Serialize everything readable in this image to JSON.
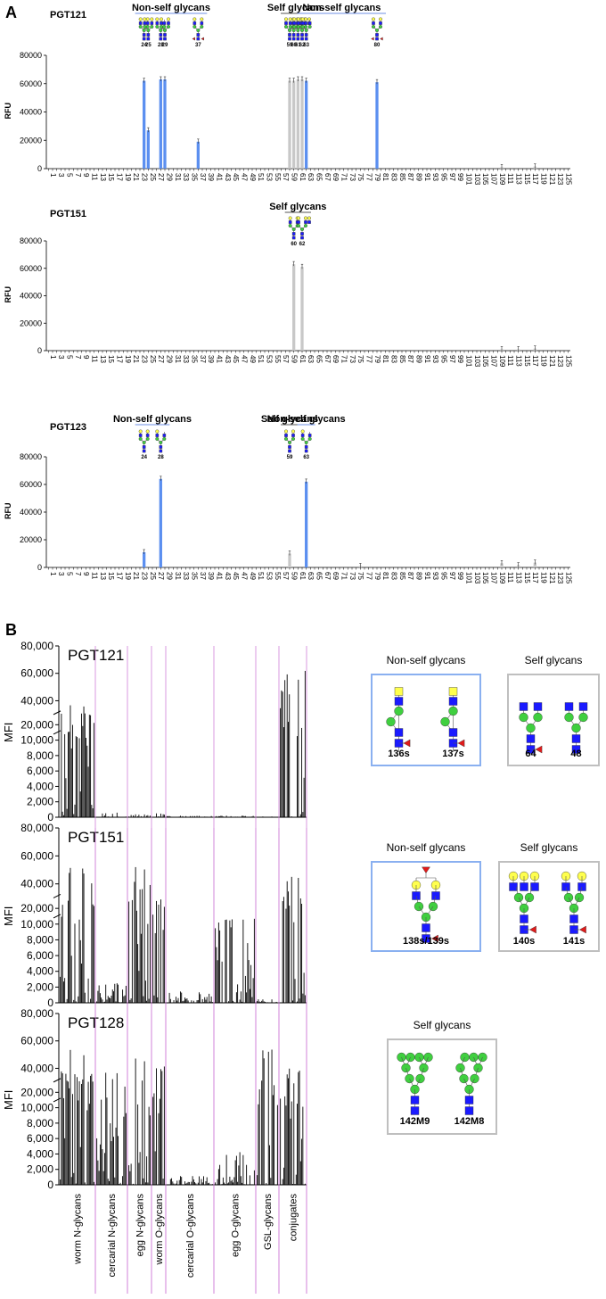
{
  "panel_a_letter": "A",
  "panel_b_letter": "B",
  "chart_data": [
    {
      "type": "bar",
      "title": "PGT121",
      "ylabel": "RFU",
      "ylim": [
        0,
        80000
      ],
      "yticks": [
        0,
        20000,
        40000,
        60000,
        80000
      ],
      "x_range": [
        1,
        126
      ],
      "x_tick_labels_every": 2,
      "bars": [
        {
          "x": 24,
          "value": 62000,
          "group": "non-self"
        },
        {
          "x": 25,
          "value": 27000,
          "group": "non-self"
        },
        {
          "x": 28,
          "value": 63000,
          "group": "non-self"
        },
        {
          "x": 29,
          "value": 63000,
          "group": "non-self"
        },
        {
          "x": 37,
          "value": 19000,
          "group": "non-self"
        },
        {
          "x": 59,
          "value": 62000,
          "group": "self"
        },
        {
          "x": 60,
          "value": 62000,
          "group": "self"
        },
        {
          "x": 61,
          "value": 63000,
          "group": "self"
        },
        {
          "x": 62,
          "value": 63000,
          "group": "self"
        },
        {
          "x": 63,
          "value": 62000,
          "group": "non-self"
        },
        {
          "x": 80,
          "value": 61000,
          "group": "non-self"
        },
        {
          "x": 110,
          "value": 1000,
          "group": "self"
        },
        {
          "x": 118,
          "value": 1500,
          "group": "self"
        }
      ],
      "headers": [
        {
          "label": "Non-self glycans",
          "from": 24,
          "to": 37,
          "color": "#6d8fe6"
        },
        {
          "label": "Self glycans",
          "from": 59,
          "to": 62,
          "color": "#555555"
        },
        {
          "label": "Non-self glycans",
          "from": 63,
          "to": 80,
          "color": "#6d8fe6"
        }
      ],
      "glycan_ids": [
        "24",
        "25",
        "28",
        "29",
        "37",
        "59",
        "60",
        "61",
        "62",
        "63",
        "80"
      ]
    },
    {
      "type": "bar",
      "title": "PGT151",
      "ylabel": "RFU",
      "ylim": [
        0,
        80000
      ],
      "yticks": [
        0,
        20000,
        40000,
        60000,
        80000
      ],
      "x_range": [
        1,
        126
      ],
      "x_tick_labels_every": 2,
      "bars": [
        {
          "x": 60,
          "value": 63000,
          "group": "self"
        },
        {
          "x": 62,
          "value": 61000,
          "group": "self"
        },
        {
          "x": 110,
          "value": 1000,
          "group": "self"
        },
        {
          "x": 114,
          "value": 1000,
          "group": "self"
        },
        {
          "x": 118,
          "value": 1500,
          "group": "self"
        }
      ],
      "headers": [
        {
          "label": "Self glycans",
          "from": 60,
          "to": 62,
          "color": "#555555"
        }
      ],
      "glycan_ids": [
        "60",
        "62"
      ]
    },
    {
      "type": "bar",
      "title": "PGT123",
      "ylabel": "RFU",
      "ylim": [
        0,
        80000
      ],
      "yticks": [
        0,
        20000,
        40000,
        60000,
        80000
      ],
      "x_range": [
        1,
        126
      ],
      "x_tick_labels_every": 2,
      "bars": [
        {
          "x": 24,
          "value": 11000,
          "group": "non-self"
        },
        {
          "x": 28,
          "value": 64000,
          "group": "non-self"
        },
        {
          "x": 59,
          "value": 10000,
          "group": "self"
        },
        {
          "x": 63,
          "value": 62000,
          "group": "non-self"
        },
        {
          "x": 76,
          "value": 1000,
          "group": "self"
        },
        {
          "x": 110,
          "value": 3000,
          "group": "self"
        },
        {
          "x": 114,
          "value": 1500,
          "group": "self"
        },
        {
          "x": 118,
          "value": 3500,
          "group": "self"
        }
      ],
      "headers": [
        {
          "label": "Non-self glycans",
          "from": 24,
          "to": 28,
          "color": "#6d8fe6"
        },
        {
          "label": "Self glycans",
          "from": 59,
          "to": 59,
          "color": "#555555"
        },
        {
          "label": "Non-self glycans",
          "from": 63,
          "to": 63,
          "color": "#6d8fe6"
        }
      ],
      "glycan_ids": [
        "24",
        "28",
        "59",
        "63"
      ]
    },
    {
      "type": "bar",
      "title": "PGT121",
      "ylabel": "MFI",
      "ytick_labels": [
        "0",
        "2,000",
        "4,000",
        "6,000",
        "8,000",
        "10,000",
        "20,000",
        "40,000",
        "60,000",
        "80,000"
      ],
      "categories": [
        "worm N-glycans",
        "cercarial N-glycans",
        "egg N-glycans",
        "worm O-glycans",
        "cercarial O-glycans",
        "egg O-glycans",
        "GSL-glycans",
        "conjugates"
      ],
      "category_profile": [
        {
          "category": "worm N-glycans",
          "max": 38000
        },
        {
          "category": "cercarial N-glycans",
          "max": 600
        },
        {
          "category": "egg N-glycans",
          "max": 400
        },
        {
          "category": "worm O-glycans",
          "max": 500
        },
        {
          "category": "cercarial O-glycans",
          "max": 200
        },
        {
          "category": "egg O-glycans",
          "max": 200
        },
        {
          "category": "GSL-glycans",
          "max": 100
        },
        {
          "category": "conjugates",
          "max": 63000
        }
      ]
    },
    {
      "type": "bar",
      "title": "PGT151",
      "ylabel": "MFI",
      "ytick_labels": [
        "0",
        "2,000",
        "4,000",
        "6,000",
        "8,000",
        "10,000",
        "20,000",
        "40,000",
        "60,000",
        "80,000"
      ],
      "categories": [
        "worm N-glycans",
        "cercarial N-glycans",
        "egg N-glycans",
        "worm O-glycans",
        "cercarial O-glycans",
        "egg O-glycans",
        "GSL-glycans",
        "conjugates"
      ],
      "category_profile": [
        {
          "category": "worm N-glycans",
          "max": 52000
        },
        {
          "category": "cercarial N-glycans",
          "max": 2500
        },
        {
          "category": "egg N-glycans",
          "max": 55000
        },
        {
          "category": "worm O-glycans",
          "max": 30000
        },
        {
          "category": "cercarial O-glycans",
          "max": 1500
        },
        {
          "category": "egg O-glycans",
          "max": 15000
        },
        {
          "category": "GSL-glycans",
          "max": 500
        },
        {
          "category": "conjugates",
          "max": 46000
        }
      ]
    },
    {
      "type": "bar",
      "title": "PGT128",
      "ylabel": "MFI",
      "ytick_labels": [
        "0",
        "2,000",
        "4,000",
        "6,000",
        "8,000",
        "10,000",
        "20,000",
        "40,000",
        "60,000",
        "80,000"
      ],
      "categories": [
        "worm N-glycans",
        "cercarial N-glycans",
        "egg N-glycans",
        "worm O-glycans",
        "cercarial O-glycans",
        "egg O-glycans",
        "GSL-glycans",
        "conjugates"
      ],
      "category_profile": [
        {
          "category": "worm N-glycans",
          "max": 56000
        },
        {
          "category": "cercarial N-glycans",
          "max": 38000
        },
        {
          "category": "egg N-glycans",
          "max": 52000
        },
        {
          "category": "worm O-glycans",
          "max": 42000
        },
        {
          "category": "cercarial O-glycans",
          "max": 1200
        },
        {
          "category": "egg O-glycans",
          "max": 4500
        },
        {
          "category": "GSL-glycans",
          "max": 55000
        },
        {
          "category": "conjugates",
          "max": 40000
        }
      ]
    }
  ],
  "legend_boxes": [
    {
      "title": "Non-self glycans",
      "border": "#8ab0f0",
      "ids": [
        "136s",
        "137s"
      ]
    },
    {
      "title": "Self glycans",
      "border": "#bfbfbf",
      "ids": [
        "64",
        "48"
      ]
    },
    {
      "title": "Non-self glycans",
      "border": "#8ab0f0",
      "ids": [
        "138s/139s"
      ]
    },
    {
      "title": "Self glycans",
      "border": "#bfbfbf",
      "ids": [
        "140s",
        "141s"
      ]
    },
    {
      "title": "Self glycans",
      "border": "#bfbfbf",
      "ids": [
        "142M9",
        "142M8"
      ]
    }
  ],
  "colors": {
    "non_self_bar": "#5b8ff0",
    "self_bar": "#c8c8c8",
    "b_bar": "#000000",
    "divider": "#d080d8",
    "gal": "#ffff4d",
    "glcnac": "#1a1aff",
    "man": "#3fcf3f",
    "fuc": "#e01b1b"
  }
}
